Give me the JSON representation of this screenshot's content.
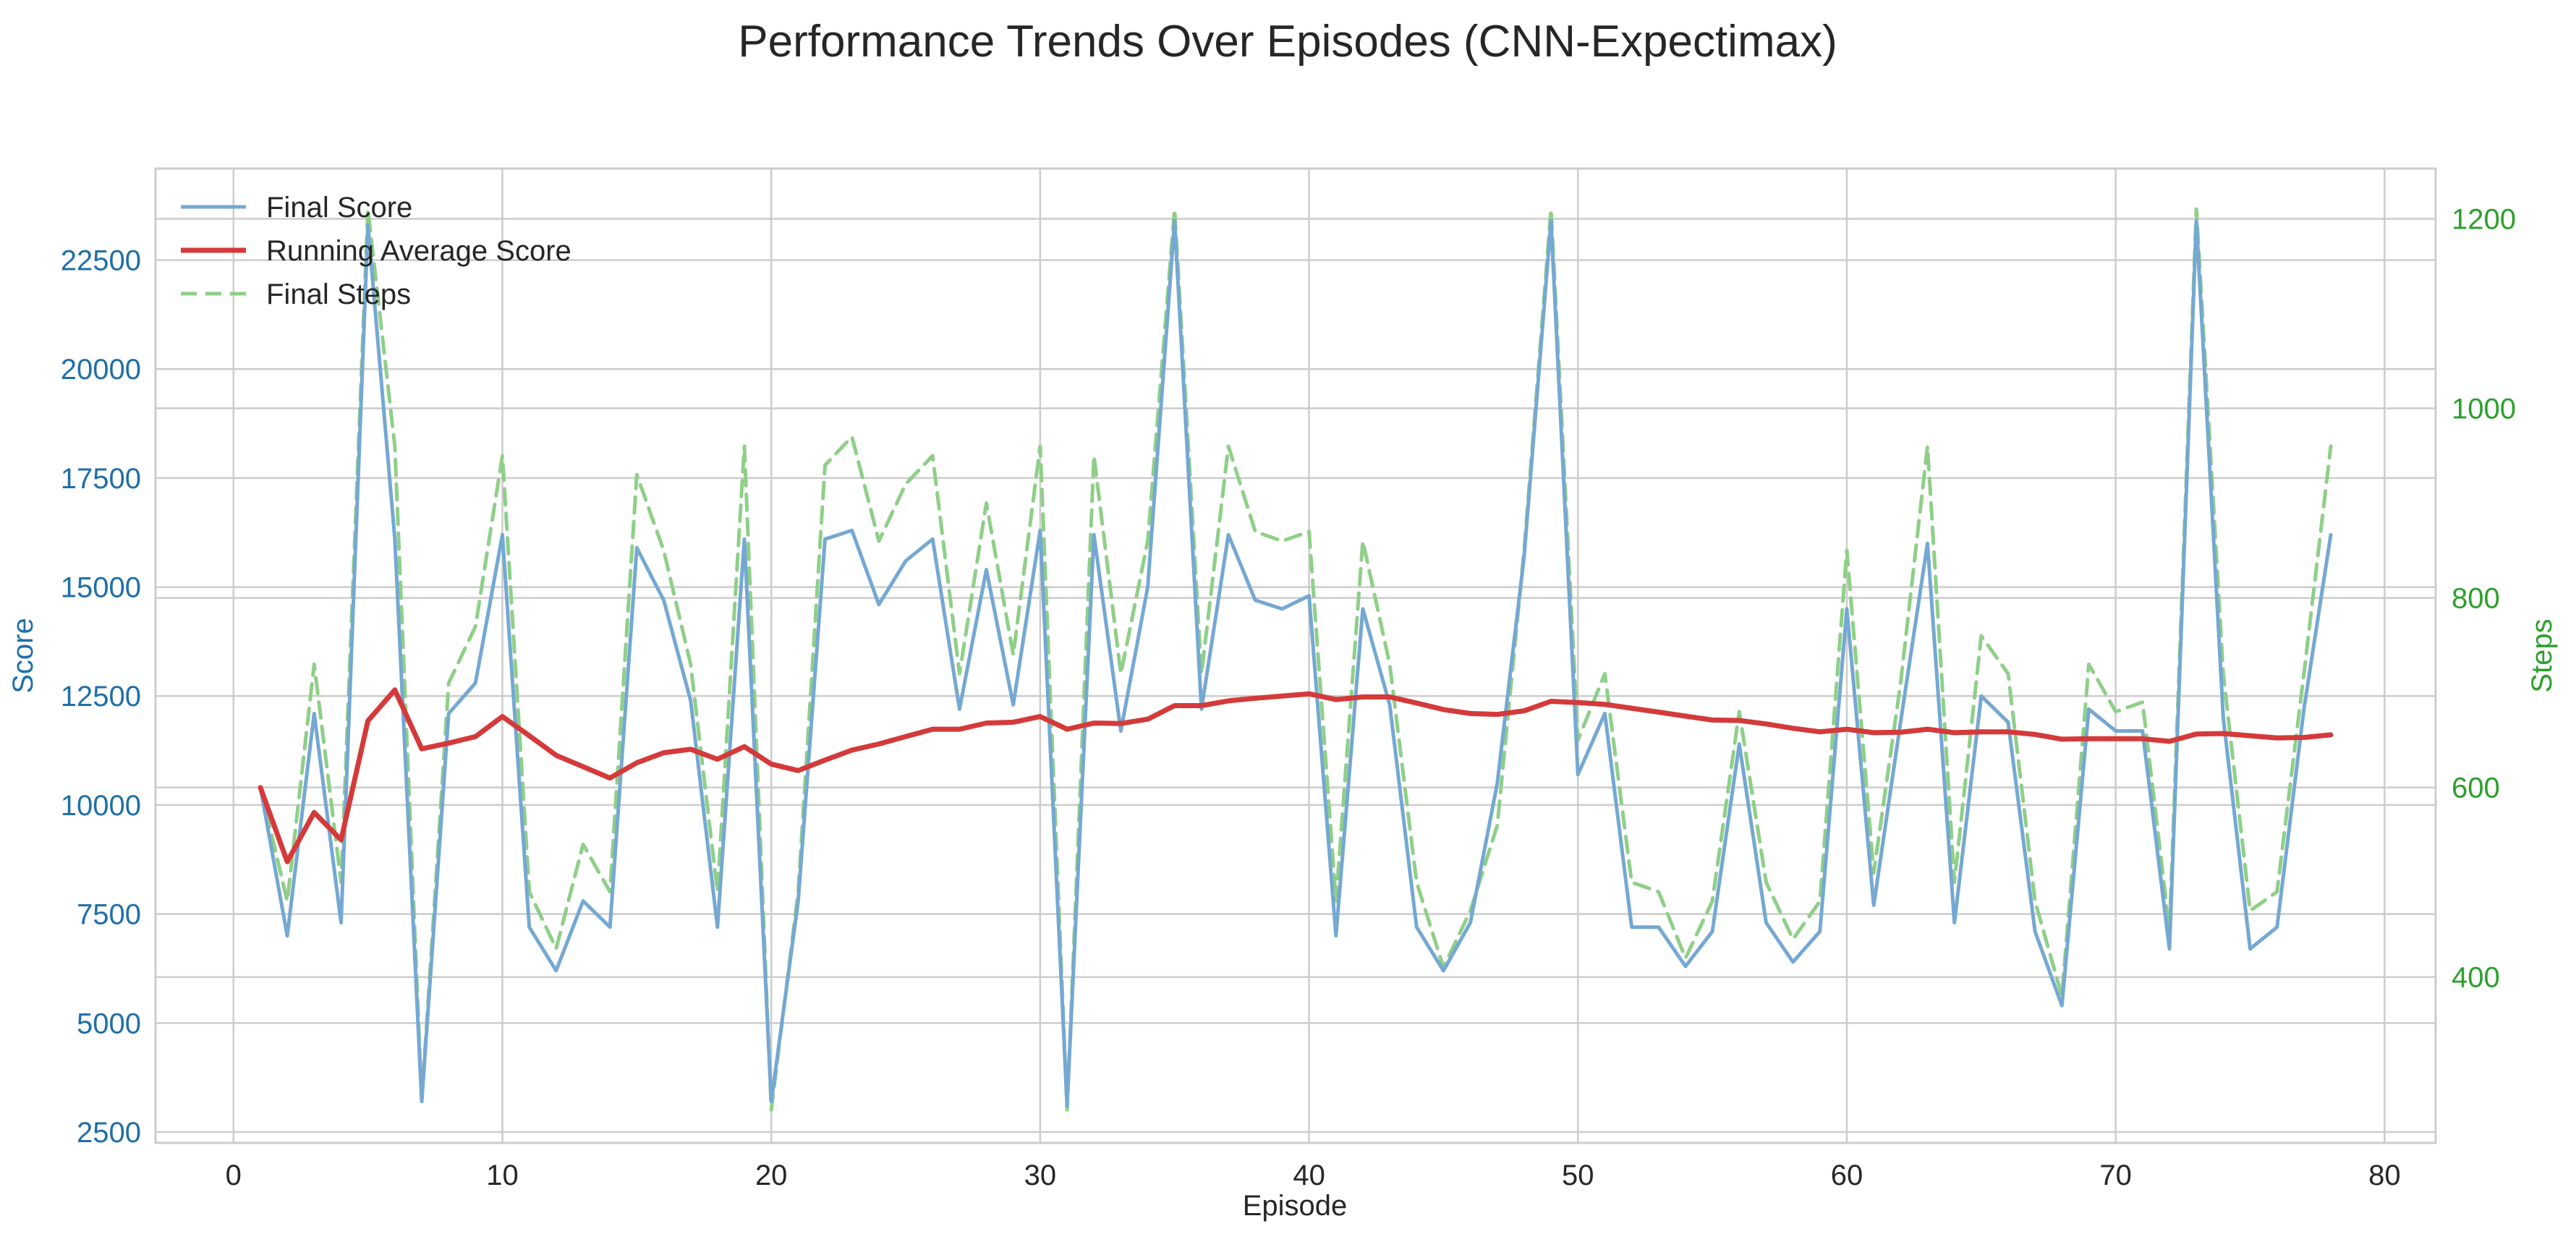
{
  "chart_data": {
    "type": "line",
    "title": "Performance Trends Over Episodes (CNN-Expectimax)",
    "xlabel": "Episode",
    "ylabel_left": "Score",
    "ylabel_right": "Steps",
    "xlim": [
      -2.9,
      81.9
    ],
    "ylim_left": [
      2250,
      24600
    ],
    "ylim_right": [
      225,
      1253
    ],
    "x_ticks": [
      "0",
      "10",
      "20",
      "30",
      "40",
      "50",
      "60",
      "70",
      "80"
    ],
    "y_left_ticks": [
      "2500",
      "5000",
      "7500",
      "10000",
      "12500",
      "15000",
      "17500",
      "20000",
      "22500"
    ],
    "y_right_ticks": [
      "400",
      "600",
      "800",
      "1000",
      "1200"
    ],
    "grid": true,
    "legend_position": "top-left",
    "colors": {
      "final_score": "#75a8d2",
      "running_avg": "#d43a3a",
      "final_steps": "#8fcf88",
      "left_axis": "#1f6fa8",
      "right_axis": "#2ca02c",
      "grid": "#cccccc",
      "frame": "#cccccc"
    },
    "x": [
      1,
      2,
      3,
      4,
      5,
      6,
      7,
      8,
      9,
      10,
      11,
      12,
      13,
      14,
      15,
      16,
      17,
      18,
      19,
      20,
      21,
      22,
      23,
      24,
      25,
      26,
      27,
      28,
      29,
      30,
      31,
      32,
      33,
      34,
      35,
      36,
      37,
      38,
      39,
      40,
      41,
      42,
      43,
      44,
      45,
      46,
      47,
      48,
      49,
      50,
      51,
      52,
      53,
      54,
      55,
      56,
      57,
      58,
      59,
      60,
      61,
      62,
      63,
      64,
      65,
      66,
      67,
      68,
      69,
      70,
      71,
      72,
      73,
      74,
      75,
      76,
      77,
      78
    ],
    "series": [
      {
        "name": "Final Score",
        "axis": "left",
        "style": "solid",
        "values": [
          10400,
          7000,
          12100,
          7300,
          23300,
          16100,
          3200,
          12100,
          12800,
          16200,
          7200,
          6200,
          7800,
          7200,
          15900,
          14700,
          12400,
          7200,
          16100,
          3200,
          7800,
          16100,
          16300,
          14600,
          15600,
          16100,
          12200,
          15400,
          12300,
          16300,
          3100,
          16200,
          11700,
          15000,
          23400,
          12200,
          16200,
          14700,
          14500,
          14800,
          7000,
          14500,
          12300,
          7200,
          6200,
          7300,
          10500,
          15700,
          23400,
          10700,
          12100,
          7200,
          7200,
          6300,
          7100,
          11400,
          7300,
          6400,
          7100,
          14500,
          7700,
          11900,
          16000,
          7300,
          12500,
          11900,
          7100,
          5400,
          12200,
          11700,
          11700,
          6700,
          23400,
          12000,
          6700,
          7200,
          12200,
          16200
        ]
      },
      {
        "name": "Running Average Score",
        "axis": "left",
        "style": "solid",
        "values": [
          10400,
          8700,
          9830,
          9200,
          11930,
          12640,
          11290,
          11420,
          11570,
          12030,
          11590,
          11140,
          10880,
          10620,
          10970,
          11200,
          11280,
          11050,
          11340,
          10940,
          10790,
          11030,
          11260,
          11400,
          11570,
          11740,
          11740,
          11880,
          11900,
          12030,
          11740,
          11880,
          11870,
          11970,
          12280,
          12280,
          12390,
          12450,
          12500,
          12550,
          12420,
          12480,
          12480,
          12340,
          12190,
          12100,
          12080,
          12160,
          12380,
          12350,
          12310,
          12220,
          12130,
          12040,
          11950,
          11940,
          11860,
          11760,
          11680,
          11740,
          11660,
          11670,
          11740,
          11660,
          11680,
          11680,
          11620,
          11510,
          11520,
          11520,
          11520,
          11460,
          11630,
          11640,
          11590,
          11540,
          11550,
          11610
        ]
      },
      {
        "name": "Final Steps",
        "axis": "right",
        "style": "dashed",
        "values": [
          600,
          480,
          730,
          500,
          1210,
          960,
          270,
          710,
          770,
          950,
          490,
          430,
          540,
          490,
          930,
          850,
          730,
          490,
          960,
          260,
          490,
          940,
          970,
          860,
          920,
          950,
          720,
          900,
          740,
          960,
          260,
          950,
          720,
          860,
          1210,
          720,
          960,
          870,
          860,
          870,
          480,
          860,
          730,
          500,
          410,
          470,
          560,
          850,
          1210,
          650,
          720,
          500,
          490,
          420,
          480,
          680,
          500,
          440,
          480,
          850,
          510,
          710,
          960,
          500,
          760,
          720,
          480,
          380,
          730,
          680,
          690,
          450,
          1210,
          720,
          470,
          490,
          720,
          960
        ]
      }
    ]
  }
}
